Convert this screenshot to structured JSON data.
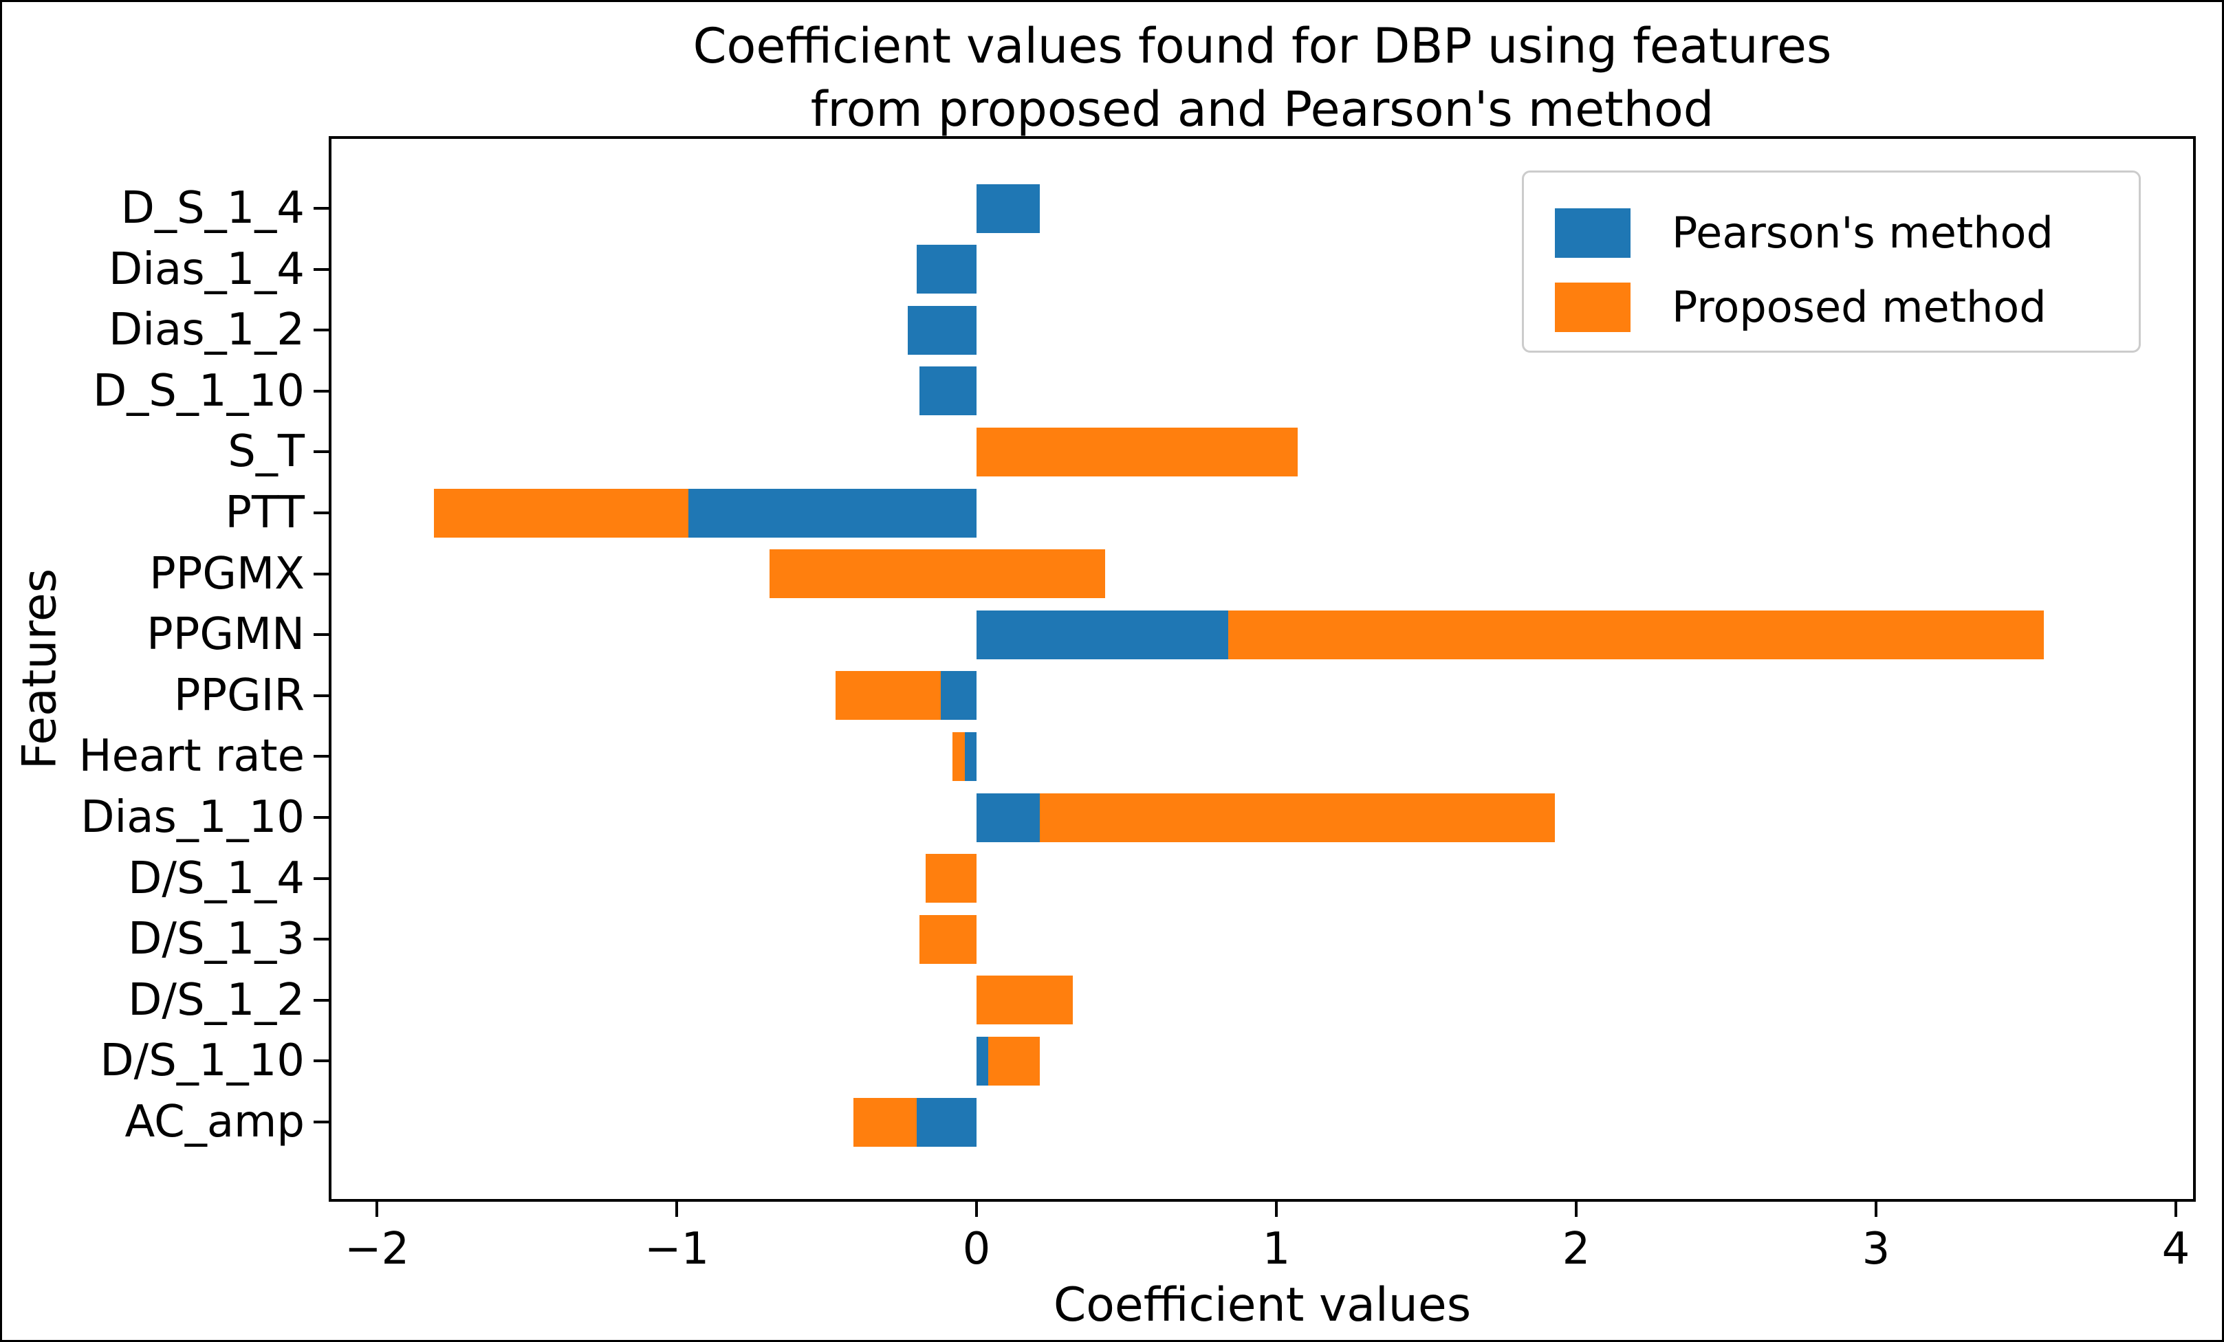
{
  "title": "Coefficient values found for DBP using features\nfrom proposed and Pearson's method",
  "axes": {
    "xlabel": "Coefficient values",
    "ylabel": "Features",
    "x_ticks": [
      {
        "value": -2,
        "label": "−2"
      },
      {
        "value": -1,
        "label": "−1"
      },
      {
        "value": 0,
        "label": "0"
      },
      {
        "value": 1,
        "label": "1"
      },
      {
        "value": 2,
        "label": "2"
      },
      {
        "value": 3,
        "label": "3"
      },
      {
        "value": 4,
        "label": "4"
      }
    ]
  },
  "legend": {
    "items": [
      {
        "label": "Pearson's method",
        "color": "#1f77b4"
      },
      {
        "label": "Proposed method",
        "color": "#ff7f0e"
      }
    ],
    "position": "upper right",
    "border_color": "#cccccc"
  },
  "colors": {
    "pearson": "#1f77b4",
    "proposed": "#ff7f0e",
    "text": "#000000",
    "background": "#ffffff"
  },
  "chart_data": {
    "type": "bar",
    "orientation": "horizontal",
    "stacking": "proposed bars are drawn starting at the end of the pearson bar (left = pearson value)",
    "title": "Coefficient values found for DBP using features from proposed and Pearson's method",
    "xlabel": "Coefficient values",
    "ylabel": "Features",
    "xlim": [
      -2.16,
      4.08
    ],
    "grid": false,
    "categories": [
      "D_S_1_4",
      "Dias_1_4",
      "Dias_1_2",
      "D_S_1_10",
      "S_T",
      "PTT",
      "PPGMX",
      "PPGMN",
      "PPGIR",
      "Heart rate",
      "Dias_1_10",
      "D/S_1_4",
      "D/S_1_3",
      "D/S_1_2",
      "D/S_1_10",
      "AC_amp"
    ],
    "series": [
      {
        "name": "Pearson's method",
        "color": "#1f77b4",
        "values": [
          0.21,
          -0.2,
          -0.23,
          -0.19,
          0.0,
          -0.96,
          -0.69,
          0.84,
          -0.12,
          -0.04,
          0.21,
          0.0,
          0.0,
          0.0,
          0.04,
          -0.2
        ]
      },
      {
        "name": "Proposed method",
        "color": "#ff7f0e",
        "values": [
          0.0,
          0.0,
          0.0,
          0.0,
          1.07,
          -0.85,
          1.12,
          2.72,
          -0.35,
          -0.04,
          1.72,
          -0.17,
          -0.19,
          0.32,
          0.17,
          -0.21
        ]
      }
    ]
  }
}
